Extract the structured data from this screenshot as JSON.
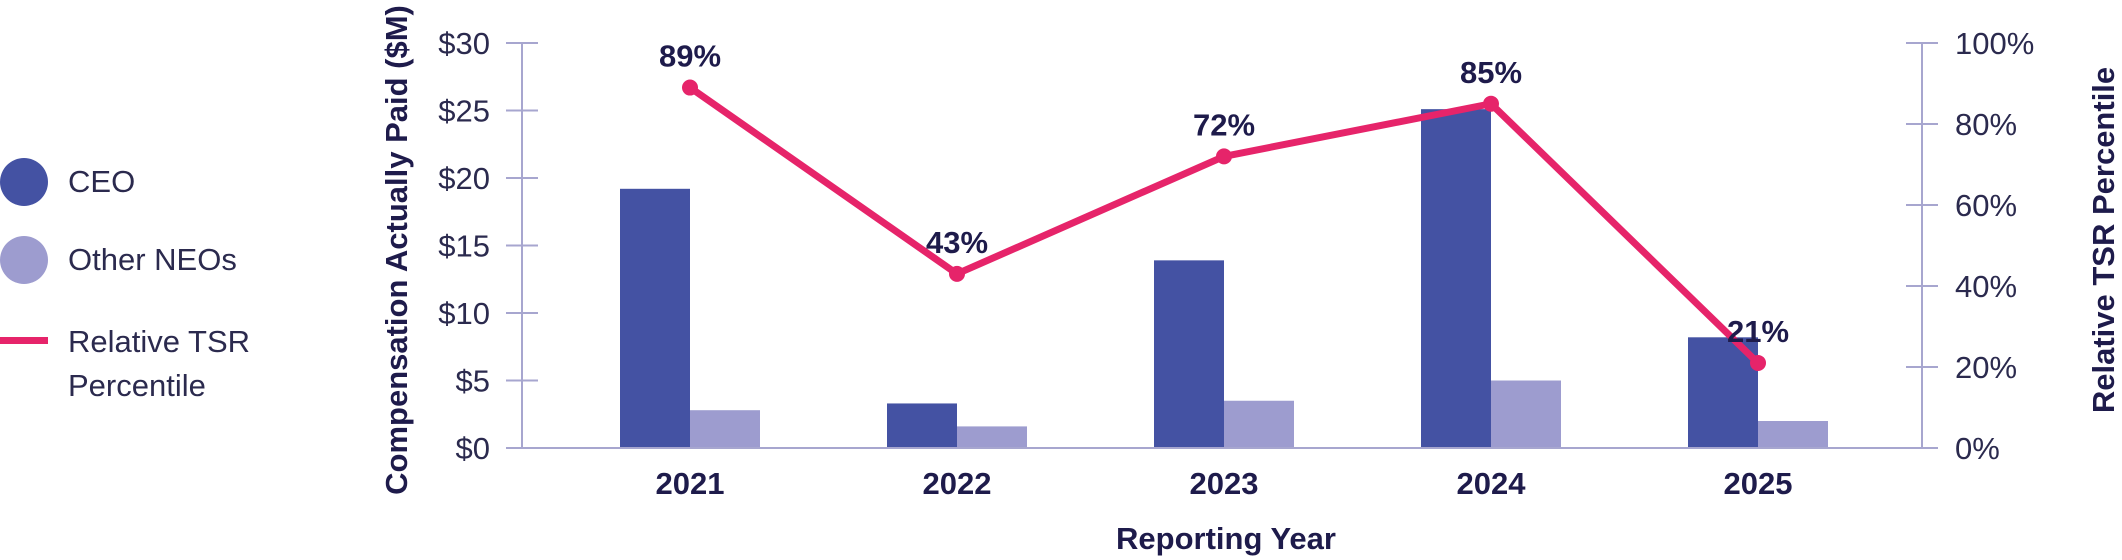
{
  "chart_data": {
    "type": "bar",
    "categories": [
      "2021",
      "2022",
      "2023",
      "2024",
      "2025"
    ],
    "series": [
      {
        "name": "CEO",
        "type": "bar",
        "axis": "left",
        "values": [
          19.2,
          3.3,
          13.9,
          25.1,
          8.2
        ]
      },
      {
        "name": "Other NEOs",
        "type": "bar",
        "axis": "left",
        "values": [
          2.8,
          1.6,
          3.5,
          5.0,
          2.0
        ]
      },
      {
        "name": "Relative TSR Percentile",
        "type": "line",
        "axis": "right",
        "values": [
          89,
          43,
          72,
          85,
          21
        ],
        "data_labels": [
          "89%",
          "43%",
          "72%",
          "85%",
          "21%"
        ]
      }
    ],
    "xlabel": "Reporting Year",
    "ylabel": "Compensation Actually Paid ($M)",
    "y2label": "Relative TSR Percentile",
    "ylim": [
      0,
      30
    ],
    "y2lim": [
      0,
      100
    ],
    "y_ticks": [
      "$0",
      "$5",
      "$10",
      "$15",
      "$20",
      "$25",
      "$30"
    ],
    "y2_ticks": [
      "0%",
      "20%",
      "40%",
      "60%",
      "80%",
      "100%"
    ],
    "legend_position": "left",
    "grid": false
  },
  "legend": [
    {
      "label": "CEO",
      "kind": "dot"
    },
    {
      "label": "Other NEOs",
      "kind": "dot"
    },
    {
      "label": "Relative TSR Percentile",
      "kind": "line"
    }
  ],
  "colors": {
    "ceo": "#4452a3",
    "other": "#9d9ccf",
    "tsr": "#e6246a",
    "axis": "#a7a6cf",
    "text": "#1e1b4b"
  }
}
